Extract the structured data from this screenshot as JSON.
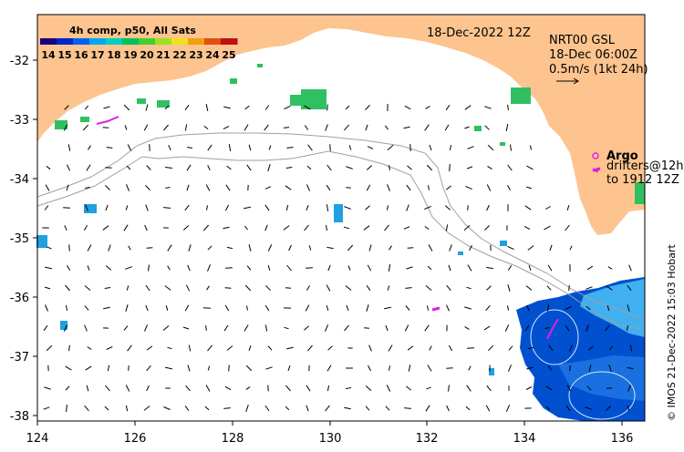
{
  "colorbar": {
    "title": "4h comp, p50, All Sats",
    "tick_values": [
      "14",
      "15",
      "16",
      "17",
      "18",
      "19",
      "20",
      "21",
      "22",
      "23",
      "24",
      "25"
    ],
    "colors": [
      "#1a0080",
      "#0025c8",
      "#0061f0",
      "#00a8f0",
      "#00d0c0",
      "#00c060",
      "#40d030",
      "#a0e020",
      "#f0e020",
      "#f0a010",
      "#e05010",
      "#c01010"
    ]
  },
  "date_label": "18-Dec-2022 12Z",
  "current_info": {
    "line1": "NRT00 GSL",
    "line2": "18-Dec 06:00Z",
    "line3": "0.5m/s (1kt 24h)"
  },
  "argo": {
    "label": "Argo",
    "drifters_line1": "drifters@12h",
    "drifters_line2": "to 1912 12Z",
    "color": "#e020e0"
  },
  "credit": "© IMOS 21-Dec-2022 15:03 Hobart",
  "axes": {
    "x_ticks": [
      "124",
      "126",
      "128",
      "130",
      "132",
      "134",
      "136"
    ],
    "y_ticks": [
      "-32",
      "-33",
      "-34",
      "-35",
      "-36",
      "-37",
      "-38"
    ],
    "lon_range": [
      124,
      136.5
    ],
    "lat_range": [
      -38.1,
      -31.35
    ]
  },
  "colors": {
    "land": "#fdc48f",
    "bathymetry": "#a0a0a0",
    "sst_green": "#30c060",
    "sst_blue": "#0050d0"
  }
}
